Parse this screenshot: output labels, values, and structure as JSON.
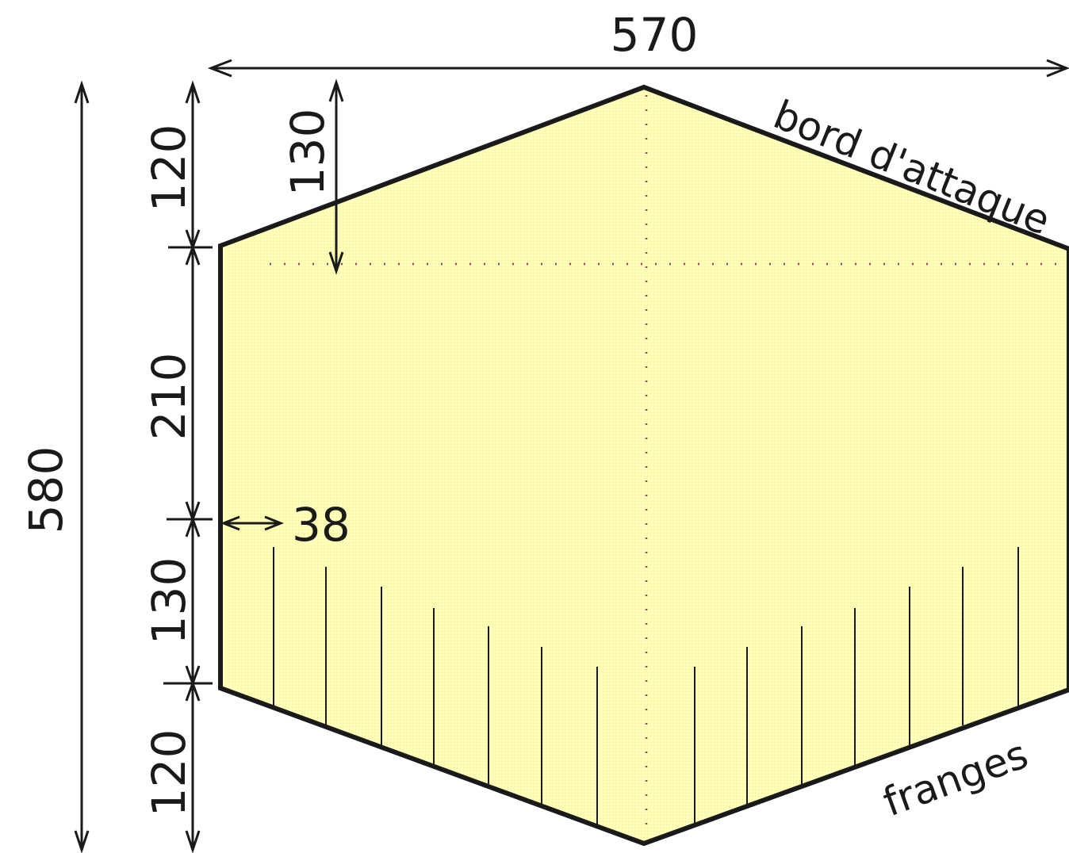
{
  "colors": {
    "fill": "#ffffb8",
    "stroke": "#1a1a1a",
    "guide": "#9a3b6a",
    "background": "#ffffff"
  },
  "dimensions": {
    "overall_width": "570",
    "overall_height": "580",
    "top_segment": "120",
    "middle_segment": "210",
    "lower_segment": "130",
    "bottom_segment": "120",
    "guide_offset": "130",
    "fringe_inset": "38"
  },
  "labels": {
    "leading_edge": "bord d'attaque",
    "fringes": "franges"
  }
}
